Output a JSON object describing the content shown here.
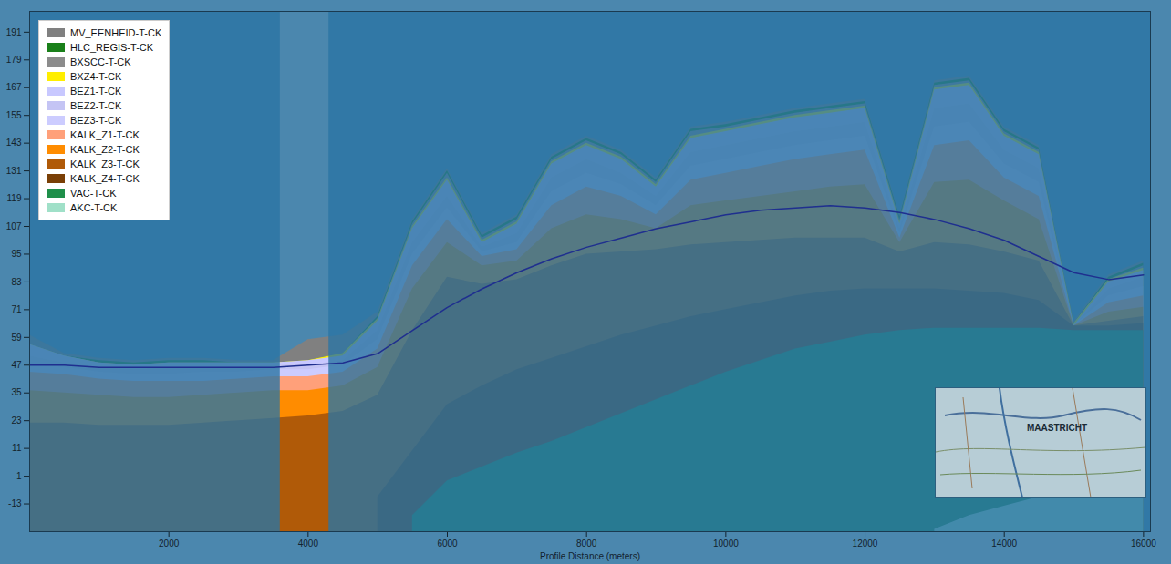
{
  "chart_data": {
    "type": "area",
    "xlabel": "Profile Distance (meters)",
    "x": [
      0,
      500,
      1000,
      1500,
      2000,
      2500,
      3000,
      3500,
      4000,
      4500,
      5000,
      5500,
      6000,
      6500,
      7000,
      7500,
      8000,
      8500,
      9000,
      9500,
      10000,
      10500,
      11000,
      11500,
      12000,
      12500,
      13000,
      13500,
      14000,
      14500,
      15000,
      15500,
      16000
    ],
    "series": [
      {
        "name": "MV_EENHEID-T-CK",
        "color": "#808080",
        "values": [
          60,
          52,
          50,
          49,
          50,
          50,
          49,
          49,
          58,
          60,
          70,
          110,
          132,
          104,
          112,
          138,
          146,
          140,
          128,
          150,
          152,
          155,
          158,
          160,
          162,
          112,
          170,
          172,
          150,
          142,
          66,
          86,
          92
        ]
      },
      {
        "name": "HLC_REGIS-T-CK",
        "color": "#1a801a",
        "values": [
          56,
          51,
          49,
          48,
          49,
          49,
          48,
          48,
          49,
          52,
          68,
          109,
          131,
          103,
          111,
          137,
          145,
          139,
          127,
          149,
          151,
          154,
          157,
          159,
          161,
          111,
          169,
          171,
          149,
          141,
          65,
          85,
          91
        ]
      },
      {
        "name": "BXSCC-T-CK",
        "color": "#8c8c8c",
        "values": [
          56,
          51,
          48,
          47,
          48,
          48,
          48,
          48,
          49,
          52,
          67,
          108,
          130,
          102,
          110,
          136,
          144,
          138,
          126,
          148,
          150,
          153,
          156,
          158,
          160,
          110,
          168,
          170,
          148,
          140,
          65,
          84,
          90
        ]
      },
      {
        "name": "BXZ4-T-CK",
        "color": "#ffee00",
        "values": [
          56,
          51,
          48,
          47,
          48,
          48,
          48,
          48,
          49,
          52,
          67,
          107,
          128,
          101,
          109,
          135,
          143,
          137,
          125,
          146,
          149,
          152,
          155,
          157,
          159,
          109,
          167,
          169,
          147,
          139,
          65,
          84,
          89
        ]
      },
      {
        "name": "BEZ1-T-CK",
        "color": "#c8c8ff",
        "values": [
          56,
          51,
          48,
          47,
          48,
          48,
          48,
          48,
          49,
          51,
          66,
          106,
          127,
          100,
          108,
          134,
          142,
          136,
          124,
          145,
          148,
          151,
          154,
          156,
          158,
          108,
          166,
          168,
          146,
          138,
          64,
          83,
          88
        ]
      },
      {
        "name": "BEZ2-T-CK",
        "color": "#c4c4f4",
        "values": [
          51,
          48,
          46,
          45,
          46,
          46,
          46,
          47,
          47,
          49,
          62,
          100,
          120,
          98,
          104,
          128,
          136,
          130,
          120,
          139,
          142,
          145,
          148,
          150,
          152,
          106,
          158,
          160,
          140,
          132,
          64,
          80,
          85
        ]
      },
      {
        "name": "BEZ3-T-CK",
        "color": "#ccccff",
        "values": [
          47,
          46,
          44,
          43,
          43,
          44,
          44,
          45,
          45,
          47,
          58,
          95,
          115,
          96,
          100,
          122,
          130,
          125,
          116,
          133,
          136,
          139,
          142,
          144,
          146,
          104,
          150,
          152,
          134,
          126,
          64,
          77,
          81
        ]
      },
      {
        "name": "KALK_Z1-T-CK",
        "color": "#ffa07a",
        "values": [
          44,
          43,
          41,
          40,
          40,
          40,
          41,
          42,
          42,
          44,
          54,
          90,
          110,
          94,
          97,
          116,
          124,
          120,
          112,
          127,
          130,
          133,
          136,
          138,
          140,
          102,
          142,
          144,
          128,
          120,
          64,
          74,
          77
        ]
      },
      {
        "name": "KALK_Z2-T-CK",
        "color": "#ff8c00",
        "values": [
          36,
          35,
          34,
          33,
          33,
          34,
          35,
          36,
          36,
          38,
          46,
          80,
          100,
          90,
          92,
          106,
          112,
          110,
          106,
          116,
          118,
          120,
          122,
          124,
          125,
          100,
          126,
          127,
          118,
          110,
          64,
          70,
          72
        ]
      },
      {
        "name": "KALK_Z3-T-CK",
        "color": "#b05a08",
        "values": [
          22,
          22,
          21,
          21,
          21,
          22,
          23,
          24,
          25,
          27,
          34,
          62,
          85,
          82,
          84,
          90,
          95,
          96,
          97,
          99,
          100,
          101,
          102,
          102,
          102,
          96,
          100,
          99,
          96,
          92,
          64,
          66,
          68
        ]
      },
      {
        "name": "KALK_Z4-T-CK",
        "color": "#7a3f06",
        "values": [
          null,
          null,
          null,
          null,
          null,
          null,
          null,
          null,
          null,
          null,
          -10,
          10,
          30,
          38,
          45,
          50,
          55,
          60,
          64,
          68,
          71,
          74,
          77,
          79,
          80,
          80,
          80,
          79,
          78,
          75,
          64,
          64,
          65
        ]
      },
      {
        "name": "VAC-T-CK",
        "color": "#1f8f4a",
        "values": [
          null,
          null,
          null,
          null,
          null,
          null,
          null,
          null,
          null,
          null,
          null,
          -18,
          -3,
          3,
          9,
          14,
          20,
          26,
          32,
          38,
          44,
          49,
          54,
          57,
          60,
          62,
          63,
          63,
          63,
          63,
          62,
          62,
          62
        ]
      },
      {
        "name": "AKC-T-CK",
        "color": "#a0e0c8",
        "values": [
          null,
          null,
          null,
          null,
          null,
          null,
          null,
          null,
          null,
          null,
          null,
          null,
          null,
          null,
          null,
          null,
          null,
          null,
          null,
          null,
          null,
          null,
          null,
          null,
          null,
          null,
          -24,
          -18,
          -14,
          -10,
          -7,
          -5,
          -4
        ]
      }
    ],
    "line": {
      "color": "#1f2f8f",
      "values": [
        47,
        47,
        46,
        46,
        46,
        46,
        46,
        46,
        47,
        48,
        52,
        62,
        72,
        80,
        87,
        93,
        98,
        102,
        106,
        109,
        112,
        114,
        115,
        116,
        115,
        113,
        110,
        106,
        101,
        94,
        87,
        84,
        86
      ]
    },
    "xlim": [
      0,
      16100
    ],
    "xticks": [
      2000,
      4000,
      6000,
      8000,
      10000,
      12000,
      14000,
      16000
    ],
    "ylim": [
      -25,
      200
    ],
    "yticks": [
      191,
      179,
      167,
      155,
      143,
      131,
      119,
      107,
      95,
      83,
      71,
      59,
      47,
      35,
      23,
      11,
      -1,
      -13
    ],
    "grid": false,
    "legend": "top-left",
    "highlight_x": [
      3600,
      4300
    ],
    "inset_map": {
      "label": "MAASTRICHT"
    }
  }
}
